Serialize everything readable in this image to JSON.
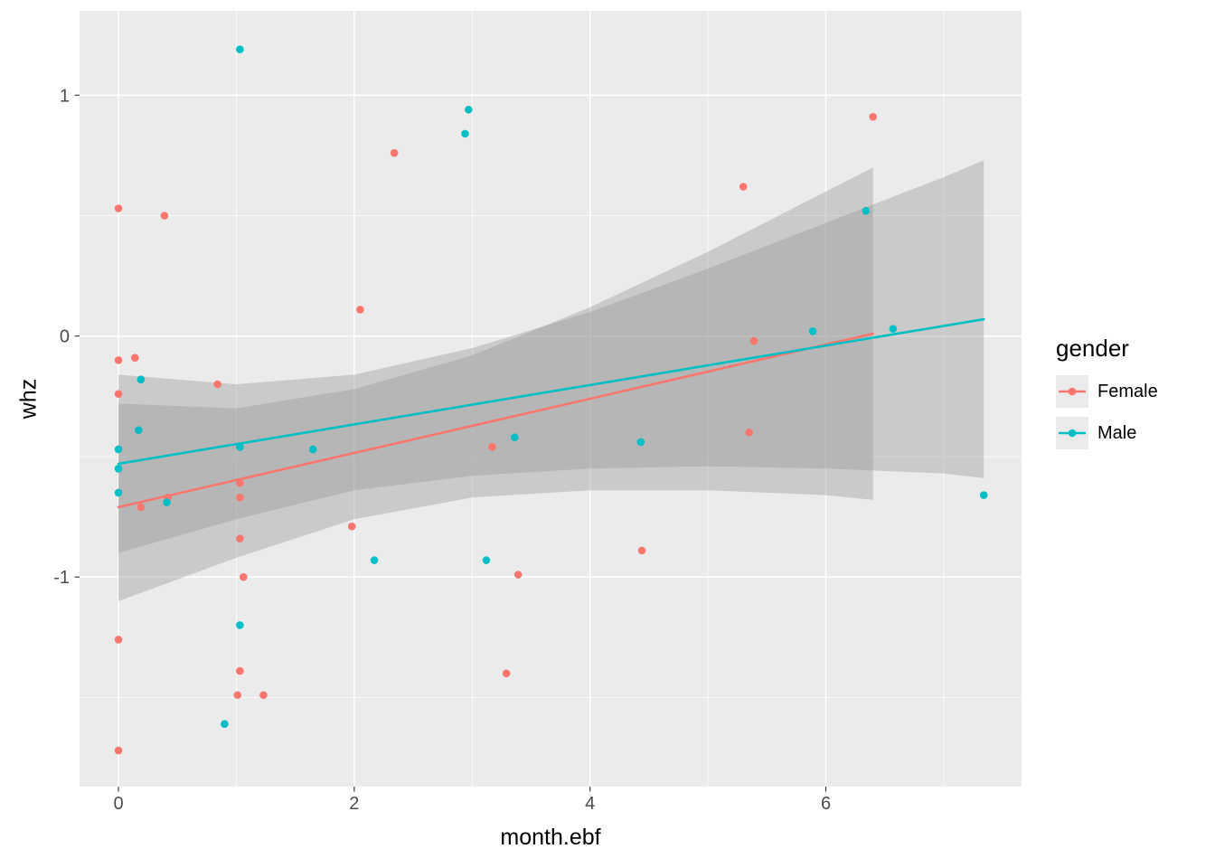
{
  "chart_data": {
    "type": "scatter",
    "title": "",
    "xlabel": "month.ebf",
    "ylabel": "whz",
    "xlim": [
      -0.33,
      7.66
    ],
    "ylim": [
      -1.87,
      1.35
    ],
    "x_ticks": [
      0,
      2,
      4,
      6
    ],
    "x_tick_labels": [
      "0",
      "2",
      "4",
      "6"
    ],
    "x_minor_ticks": [
      1,
      3,
      5,
      7
    ],
    "y_ticks": [
      -1,
      0,
      1
    ],
    "y_tick_labels": [
      "-1",
      "0",
      "1"
    ],
    "y_minor_ticks": [
      -1.5,
      -0.5,
      0.5
    ],
    "grid": true,
    "panel_bg": "#EBEBEB",
    "grid_color": "#FFFFFF",
    "tick_color": "#333333",
    "tick_label_color": "#4D4D4D",
    "ribbon_color": "#999999",
    "ribbon_opacity": 0.4,
    "legend": {
      "title": "gender",
      "position": "right",
      "entries": [
        "Female",
        "Male"
      ]
    },
    "series": [
      {
        "name": "Female",
        "color": "#F8766D",
        "points": [
          [
            0,
            0.53
          ],
          [
            0.39,
            0.5
          ],
          [
            2.34,
            0.76
          ],
          [
            6.4,
            0.91
          ],
          [
            5.3,
            0.62
          ],
          [
            2.05,
            0.11
          ],
          [
            0,
            -0.1
          ],
          [
            0.14,
            -0.09
          ],
          [
            0,
            -0.24
          ],
          [
            0.84,
            -0.2
          ],
          [
            5.39,
            -0.02
          ],
          [
            3.17,
            -0.46
          ],
          [
            5.35,
            -0.4
          ],
          [
            0.19,
            -0.71
          ],
          [
            0.42,
            -0.67
          ],
          [
            1.03,
            -0.61
          ],
          [
            1.03,
            -0.67
          ],
          [
            1.98,
            -0.79
          ],
          [
            1.03,
            -0.84
          ],
          [
            4.44,
            -0.89
          ],
          [
            3.39,
            -0.99
          ],
          [
            1.06,
            -1.0
          ],
          [
            0,
            -1.26
          ],
          [
            1.03,
            -1.39
          ],
          [
            3.29,
            -1.4
          ],
          [
            1.01,
            -1.49
          ],
          [
            1.23,
            -1.49
          ],
          [
            0,
            -1.72
          ]
        ],
        "regression": {
          "x": [
            0,
            6.4
          ],
          "y": [
            -0.71,
            0.01
          ]
        },
        "ribbon": {
          "x": [
            0,
            1,
            2,
            3,
            4,
            5,
            6,
            6.4
          ],
          "upper": [
            -0.28,
            -0.3,
            -0.22,
            -0.08,
            0.12,
            0.35,
            0.6,
            0.7
          ],
          "lower": [
            -1.1,
            -0.92,
            -0.76,
            -0.67,
            -0.64,
            -0.64,
            -0.66,
            -0.68
          ]
        }
      },
      {
        "name": "Male",
        "color": "#00BFC4",
        "points": [
          [
            1.03,
            1.19
          ],
          [
            2.97,
            0.94
          ],
          [
            2.94,
            0.84
          ],
          [
            6.34,
            0.52
          ],
          [
            0.19,
            -0.18
          ],
          [
            5.89,
            0.02
          ],
          [
            6.57,
            0.03
          ],
          [
            0.17,
            -0.39
          ],
          [
            0,
            -0.47
          ],
          [
            1.03,
            -0.46
          ],
          [
            1.65,
            -0.47
          ],
          [
            3.36,
            -0.42
          ],
          [
            4.43,
            -0.44
          ],
          [
            0,
            -0.55
          ],
          [
            0,
            -0.65
          ],
          [
            0.41,
            -0.69
          ],
          [
            7.34,
            -0.66
          ],
          [
            2.17,
            -0.93
          ],
          [
            3.12,
            -0.93
          ],
          [
            1.03,
            -1.2
          ],
          [
            0.9,
            -1.61
          ]
        ],
        "regression": {
          "x": [
            0,
            7.34
          ],
          "y": [
            -0.53,
            0.07
          ]
        },
        "ribbon": {
          "x": [
            0,
            1,
            2,
            3,
            4,
            5,
            6,
            7,
            7.34
          ],
          "upper": [
            -0.16,
            -0.2,
            -0.16,
            -0.05,
            0.1,
            0.28,
            0.47,
            0.66,
            0.73
          ],
          "lower": [
            -0.9,
            -0.76,
            -0.64,
            -0.58,
            -0.55,
            -0.54,
            -0.55,
            -0.57,
            -0.59
          ]
        }
      }
    ]
  }
}
